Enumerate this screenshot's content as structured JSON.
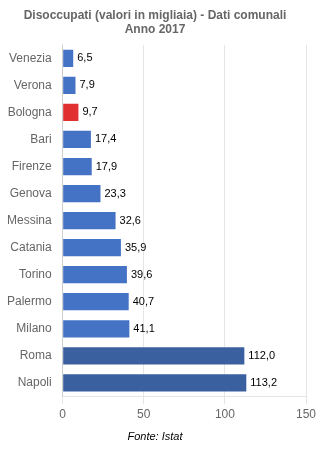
{
  "chart_data": {
    "type": "bar",
    "orientation": "horizontal",
    "title": "Disoccupati (valori in migliaia) - Dati comunali\nAnno 2017",
    "categories": [
      "Venezia",
      "Verona",
      "Bologna",
      "Bari",
      "Firenze",
      "Genova",
      "Messina",
      "Catania",
      "Torino",
      "Palermo",
      "Milano",
      "Roma",
      "Napoli"
    ],
    "values": [
      6.5,
      7.9,
      9.7,
      17.4,
      17.9,
      23.3,
      32.6,
      35.9,
      39.6,
      40.7,
      41.1,
      112.0,
      113.2
    ],
    "value_labels": [
      "6,5",
      "7,9",
      "9,7",
      "17,4",
      "17,9",
      "23,3",
      "32,6",
      "35,9",
      "39,6",
      "40,7",
      "41,1",
      "112,0",
      "113,2"
    ],
    "data_labels": true,
    "colors": [
      "#4472C4",
      "#4472C4",
      "#E03030",
      "#4472C4",
      "#4472C4",
      "#4472C4",
      "#4472C4",
      "#4472C4",
      "#4472C4",
      "#4472C4",
      "#4472C4",
      "#3A60A0",
      "#3A60A0"
    ],
    "xlim": [
      0,
      150
    ],
    "xticks": [
      0,
      50,
      100,
      150
    ],
    "grid": true,
    "annotations": [
      "Fonte: Istat"
    ]
  }
}
